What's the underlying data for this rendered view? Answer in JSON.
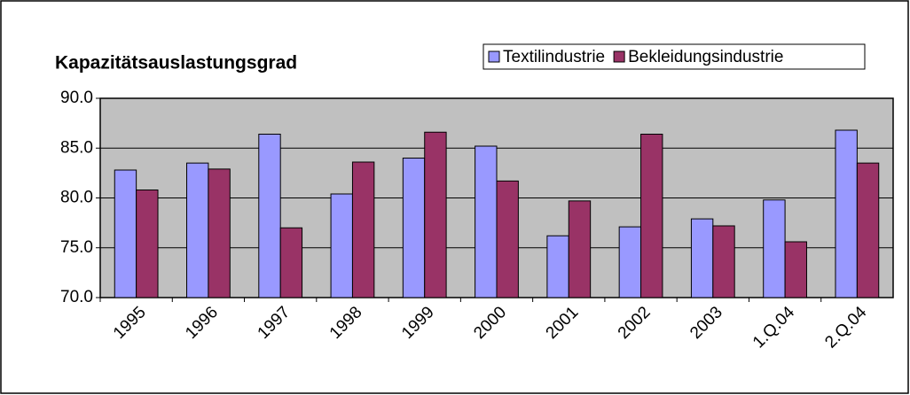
{
  "chart_data": {
    "type": "bar",
    "title": "Kapazitätsauslastungsgrad",
    "categories": [
      "1995",
      "1996",
      "1997",
      "1998",
      "1999",
      "2000",
      "2001",
      "2002",
      "2003",
      "1.Q.04",
      "2.Q.04"
    ],
    "series": [
      {
        "name": "Textilindustrie",
        "color": "#9999ff",
        "values": [
          82.8,
          83.5,
          86.4,
          80.4,
          84.0,
          85.2,
          76.2,
          77.1,
          77.9,
          79.8,
          86.8
        ]
      },
      {
        "name": "Bekleidungsindustrie",
        "color": "#993366",
        "values": [
          80.8,
          82.9,
          77.0,
          83.6,
          86.6,
          81.7,
          79.7,
          86.4,
          77.2,
          75.6,
          83.5
        ]
      }
    ],
    "ylim": [
      70,
      90
    ],
    "yticks": [
      {
        "value": 70,
        "label": "70.0"
      },
      {
        "value": 75,
        "label": "75.0"
      },
      {
        "value": 80,
        "label": "80.0"
      },
      {
        "value": 85,
        "label": "85.0"
      },
      {
        "value": 90,
        "label": "90.0"
      }
    ],
    "grid": true,
    "legend": "top-right"
  }
}
